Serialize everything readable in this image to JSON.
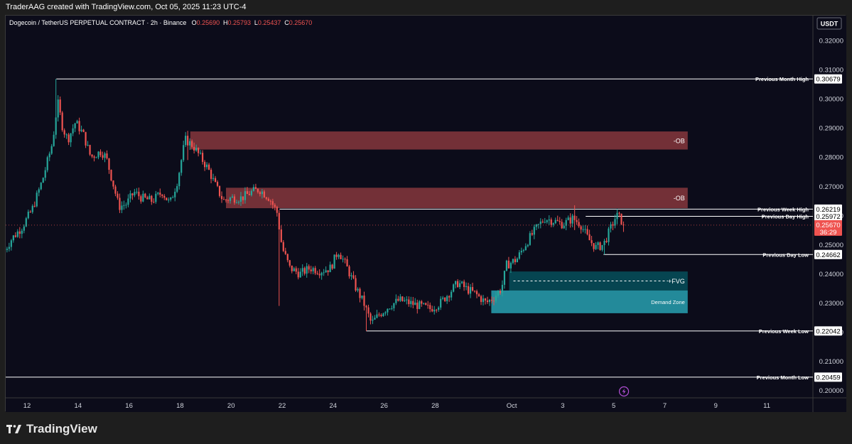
{
  "attribution": "TraderAAG created with TradingView.com, Oct 05, 2025 11:23 UTC-4",
  "brand": "TradingView",
  "currency_button": "USDT",
  "legend": {
    "symbol": "Dogecoin / TetherUS PERPETUAL CONTRACT · 2h · Binance",
    "open_label": "O",
    "open": "0.25690",
    "high_label": "H",
    "high": "0.25793",
    "low_label": "L",
    "low": "0.25437",
    "close_label": "C",
    "close": "0.25670"
  },
  "colors": {
    "bull": "#26a69a",
    "bear": "#ef5350",
    "ob_fill": "#8d3a3e",
    "fvg_fill": "#008b95",
    "demand_fill": "#2bb4c6",
    "level_line": "#ffffff",
    "price_badge": "#ef5350"
  },
  "chart_data": {
    "type": "candlestick",
    "title": "",
    "ylim": [
      0.1975,
      0.3285
    ],
    "y_ticks": [
      "0.32000",
      "0.31000",
      "0.30000",
      "0.29000",
      "0.28000",
      "0.27000",
      "0.26000",
      "0.25000",
      "0.24000",
      "0.23000",
      "0.22000",
      "0.21000",
      "0.20000"
    ],
    "x_ticks": [
      {
        "label": "12",
        "day": 12
      },
      {
        "label": "14",
        "day": 14
      },
      {
        "label": "16",
        "day": 16
      },
      {
        "label": "18",
        "day": 18
      },
      {
        "label": "20",
        "day": 20
      },
      {
        "label": "22",
        "day": 22
      },
      {
        "label": "24",
        "day": 24
      },
      {
        "label": "26",
        "day": 26
      },
      {
        "label": "28",
        "day": 28
      },
      {
        "label": "Oct",
        "day": 31
      },
      {
        "label": "3",
        "day": 33
      },
      {
        "label": "5",
        "day": 35
      },
      {
        "label": "7",
        "day": 37
      },
      {
        "label": "9",
        "day": 39
      },
      {
        "label": "11",
        "day": 41
      }
    ],
    "day_axis_note": "days counted from Sep 1 (Sep has 30 days); Oct = day 31",
    "price_path": [
      [
        11.05,
        0.247
      ],
      [
        11.4,
        0.252
      ],
      [
        11.8,
        0.256
      ],
      [
        12.2,
        0.262
      ],
      [
        12.6,
        0.272
      ],
      [
        13.0,
        0.285
      ],
      [
        13.2,
        0.299
      ],
      [
        13.4,
        0.29
      ],
      [
        13.6,
        0.286
      ],
      [
        13.9,
        0.292
      ],
      [
        14.2,
        0.288
      ],
      [
        14.5,
        0.28
      ],
      [
        14.9,
        0.282
      ],
      [
        15.1,
        0.28
      ],
      [
        15.4,
        0.27
      ],
      [
        15.6,
        0.263
      ],
      [
        15.9,
        0.264
      ],
      [
        16.2,
        0.268
      ],
      [
        16.5,
        0.266
      ],
      [
        16.9,
        0.265
      ],
      [
        17.3,
        0.268
      ],
      [
        17.6,
        0.264
      ],
      [
        17.9,
        0.272
      ],
      [
        18.2,
        0.286
      ],
      [
        18.5,
        0.284
      ],
      [
        18.8,
        0.28
      ],
      [
        19.1,
        0.276
      ],
      [
        19.4,
        0.27
      ],
      [
        19.7,
        0.265
      ],
      [
        20.0,
        0.266
      ],
      [
        20.4,
        0.266
      ],
      [
        20.8,
        0.268
      ],
      [
        21.1,
        0.269
      ],
      [
        21.5,
        0.266
      ],
      [
        21.8,
        0.261
      ],
      [
        22.0,
        0.249
      ],
      [
        22.3,
        0.242
      ],
      [
        22.7,
        0.24
      ],
      [
        23.1,
        0.242
      ],
      [
        23.5,
        0.241
      ],
      [
        23.9,
        0.242
      ],
      [
        24.2,
        0.248
      ],
      [
        24.5,
        0.243
      ],
      [
        24.9,
        0.235
      ],
      [
        25.2,
        0.23
      ],
      [
        25.5,
        0.223
      ],
      [
        25.8,
        0.226
      ],
      [
        26.2,
        0.229
      ],
      [
        26.6,
        0.231
      ],
      [
        27.0,
        0.23
      ],
      [
        27.4,
        0.229
      ],
      [
        27.8,
        0.228
      ],
      [
        28.2,
        0.23
      ],
      [
        28.6,
        0.234
      ],
      [
        28.9,
        0.237
      ],
      [
        29.2,
        0.235
      ],
      [
        29.6,
        0.233
      ],
      [
        30.0,
        0.23
      ],
      [
        30.3,
        0.232
      ],
      [
        30.6,
        0.235
      ],
      [
        30.8,
        0.243
      ],
      [
        31.2,
        0.245
      ],
      [
        31.6,
        0.251
      ],
      [
        32.0,
        0.256
      ],
      [
        32.3,
        0.259
      ],
      [
        32.7,
        0.258
      ],
      [
        33.0,
        0.257
      ],
      [
        33.4,
        0.259
      ],
      [
        33.7,
        0.257
      ],
      [
        34.0,
        0.252
      ],
      [
        34.3,
        0.249
      ],
      [
        34.6,
        0.25
      ],
      [
        34.9,
        0.256
      ],
      [
        35.1,
        0.26
      ],
      [
        35.25,
        0.259
      ],
      [
        35.4,
        0.2567
      ]
    ],
    "highlights": [
      {
        "x": 13.15,
        "high": 0.3068,
        "low": 0.288
      },
      {
        "x": 18.3,
        "high": 0.289,
        "low": 0.279
      },
      {
        "x": 21.9,
        "high": 0.258,
        "low": 0.229
      },
      {
        "x": 25.3,
        "high": 0.228,
        "low": 0.2204
      },
      {
        "x": 33.5,
        "high": 0.2635,
        "low": 0.255
      },
      {
        "x": 34.6,
        "high": 0.252,
        "low": 0.2466
      },
      {
        "x": 35.1,
        "high": 0.2622,
        "low": 0.257
      }
    ],
    "zones": [
      {
        "label": "-OB",
        "x_start": 18.4,
        "x_end": 37.9,
        "top": 0.2888,
        "bottom": 0.2826,
        "kind": "ob"
      },
      {
        "label": "-OB",
        "x_start": 19.8,
        "x_end": 37.9,
        "top": 0.2695,
        "bottom": 0.2625,
        "kind": "ob"
      },
      {
        "label": "+FVG",
        "x_start": 30.9,
        "x_end": 37.9,
        "top": 0.2408,
        "bottom": 0.2343,
        "kind": "fvg"
      },
      {
        "label": "Demand Zone",
        "x_start": 30.2,
        "x_end": 37.9,
        "top": 0.2343,
        "bottom": 0.2265,
        "kind": "demand"
      }
    ],
    "levels": [
      {
        "label": "Previous Month High",
        "value": "0.30679",
        "price": 0.30679,
        "x_start": 13.15
      },
      {
        "label": "Previous Week High",
        "value": "0.26219",
        "price": 0.26219,
        "x_start": 21.9
      },
      {
        "label": "Previous Day High",
        "value": "0.25972",
        "price": 0.25972,
        "x_start": 33.9
      },
      {
        "label": "Previous Day Low",
        "value": "0.24662",
        "price": 0.24662,
        "x_start": 34.6
      },
      {
        "label": "Previous Week Low",
        "value": "0.22042",
        "price": 0.22042,
        "x_start": 25.3
      },
      {
        "label": "Previous Month Low",
        "value": "0.20459",
        "price": 0.20459,
        "x_start": 11.0
      }
    ],
    "current_price": {
      "value": "0.25670",
      "countdown": "36:29",
      "price": 0.2567
    }
  }
}
